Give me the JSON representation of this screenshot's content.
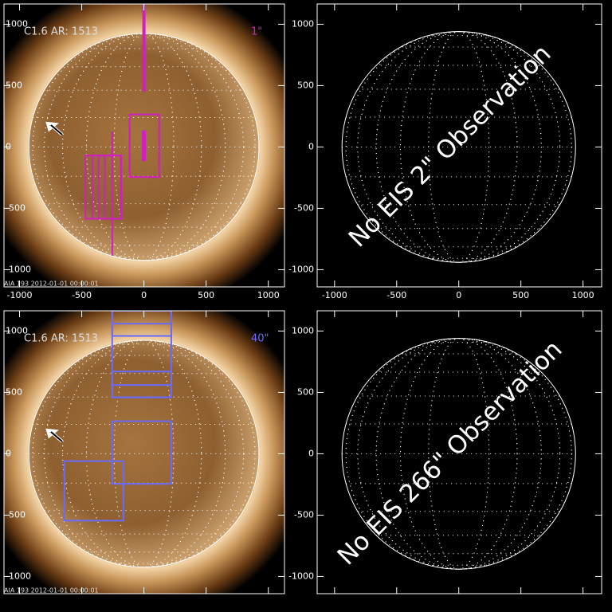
{
  "chart_data": [
    {
      "type": "solar-image",
      "title": "C1.6 AR: 1513",
      "scale_label": "1\"",
      "footer": "AIA 193  2012-01-01 00:00:01",
      "color": "#d020c0",
      "xlim": [
        -1125,
        1130
      ],
      "ylim": [
        -1140,
        1165
      ],
      "xticks": [
        -1000,
        -500,
        0,
        500,
        1000
      ],
      "yticks": [
        -1000,
        -500,
        0,
        500,
        1000
      ],
      "xtick_labels": true,
      "disk_radius": 925,
      "rasters": [
        {
          "x": [
            -115,
            122
          ],
          "y": [
            -245,
            265
          ]
        },
        {
          "x": [
            -470,
            -185
          ],
          "y": [
            -585,
            -70
          ]
        },
        {
          "x": [
            -415,
            -185
          ],
          "y": [
            -585,
            -70
          ]
        },
        {
          "x": [
            -365,
            -185
          ],
          "y": [
            -585,
            -70
          ]
        },
        {
          "x": [
            -315,
            -185
          ],
          "y": [
            -585,
            -70
          ]
        }
      ],
      "slits": [
        {
          "x": [
            0,
            0
          ],
          "y": [
            450,
            1165
          ]
        },
        {
          "x": [
            0,
            0
          ],
          "y": [
            -115,
            135
          ]
        },
        {
          "x": [
            -255,
            -255
          ],
          "y": [
            -885,
            125
          ]
        }
      ]
    },
    {
      "type": "disk",
      "title": "No EIS 2\" Observation",
      "xlim": [
        -1140,
        1150
      ],
      "ylim": [
        -1140,
        1165
      ],
      "xticks": [
        -1000,
        -500,
        0,
        500,
        1000
      ],
      "yticks": [
        -1000,
        -500,
        0,
        500,
        1000
      ],
      "xtick_labels": true,
      "disk_radius": 940
    },
    {
      "type": "solar-image",
      "title": "C1.6 AR: 1513",
      "scale_label": "40\"",
      "footer": "AIA 193  2012-01-01 00:00:01",
      "color": "#6a6aff",
      "xlim": [
        -1125,
        1130
      ],
      "ylim": [
        -1140,
        1165
      ],
      "xticks": [
        -1000,
        -500,
        0,
        500,
        1000
      ],
      "yticks": [
        -1000,
        -500,
        0,
        500,
        1000
      ],
      "xtick_labels": false,
      "disk_radius": 925,
      "rasters": [
        {
          "x": [
            -255,
            220
          ],
          "y": [
            460,
            1165
          ]
        },
        {
          "x": [
            -255,
            220
          ],
          "y": [
            460,
            670
          ]
        },
        {
          "x": [
            -255,
            220
          ],
          "y": [
            460,
            560
          ]
        },
        {
          "x": [
            -255,
            220
          ],
          "y": [
            960,
            1165
          ]
        },
        {
          "x": [
            -255,
            220
          ],
          "y": [
            1060,
            1165
          ]
        },
        {
          "x": [
            -255,
            220
          ],
          "y": [
            -245,
            265
          ]
        },
        {
          "x": [
            -640,
            -165
          ],
          "y": [
            -545,
            -60
          ]
        }
      ],
      "slits": []
    },
    {
      "type": "disk",
      "title": "No EIS 266\" Observation",
      "xlim": [
        -1140,
        1150
      ],
      "ylim": [
        -1140,
        1165
      ],
      "xticks": [
        -1000,
        -500,
        0,
        500,
        1000
      ],
      "yticks": [
        -1000,
        -500,
        0,
        500,
        1000
      ],
      "xtick_labels": false,
      "disk_radius": 940
    }
  ]
}
